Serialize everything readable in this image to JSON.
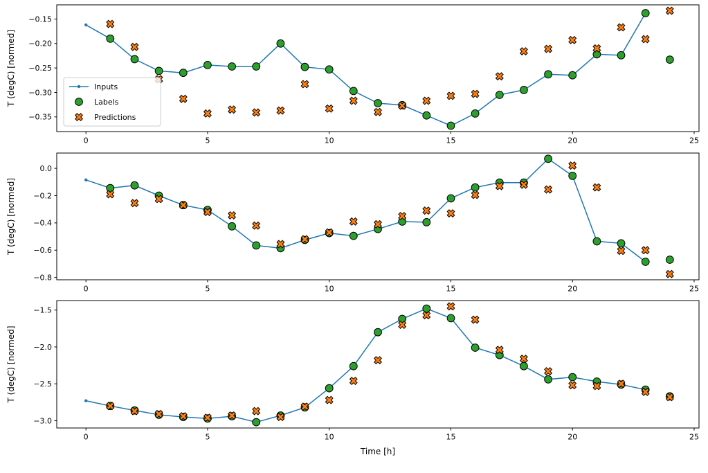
{
  "figure": {
    "xlabel": "Time [h]",
    "background": "#ffffff"
  },
  "legend": {
    "items": [
      "Inputs",
      "Labels",
      "Predictions"
    ],
    "position": "upper-left-of-first-subplot"
  },
  "colors": {
    "inputs": "#1f77b4",
    "labels": "#2ca02c",
    "predictions": "#ff7f0e",
    "marker_edge": "#000000",
    "legend_frame": "#cccccc"
  },
  "chart_data": [
    {
      "type": "line",
      "title": "",
      "ylabel": "T (degC) [normed]",
      "xlabel": "",
      "xlim": [
        -1.2,
        25.2
      ],
      "ylim": [
        -0.38,
        -0.121
      ],
      "xticks": [
        0,
        5,
        10,
        15,
        20,
        25
      ],
      "xtick_labels": [
        "0",
        "5",
        "10",
        "15",
        "20",
        "25"
      ],
      "yticks": [
        -0.15,
        -0.2,
        -0.25,
        -0.3,
        -0.35
      ],
      "ytick_labels": [
        "−0.15",
        "−0.20",
        "−0.25",
        "−0.30",
        "−0.35"
      ],
      "grid": false,
      "series": [
        {
          "name": "Inputs",
          "type": "line-dot",
          "color": "#1f77b4",
          "x": [
            0,
            1,
            2,
            3,
            4,
            5,
            6,
            7,
            8,
            9,
            10,
            11,
            12,
            13,
            14,
            15,
            16,
            17,
            18,
            19,
            20,
            21,
            22,
            23
          ],
          "y": [
            -0.162,
            -0.19,
            -0.232,
            -0.256,
            -0.26,
            -0.244,
            -0.247,
            -0.247,
            -0.2,
            -0.248,
            -0.253,
            -0.297,
            -0.322,
            -0.326,
            -0.347,
            -0.368,
            -0.343,
            -0.305,
            -0.295,
            -0.263,
            -0.265,
            -0.222,
            -0.224,
            -0.138
          ]
        },
        {
          "name": "Labels",
          "type": "circle",
          "color": "#2ca02c",
          "x": [
            1,
            2,
            3,
            4,
            5,
            6,
            7,
            8,
            9,
            10,
            11,
            12,
            13,
            14,
            15,
            16,
            17,
            18,
            19,
            20,
            21,
            22,
            23,
            24
          ],
          "y": [
            -0.19,
            -0.232,
            -0.256,
            -0.26,
            -0.244,
            -0.247,
            -0.247,
            -0.2,
            -0.248,
            -0.253,
            -0.297,
            -0.322,
            -0.326,
            -0.347,
            -0.368,
            -0.343,
            -0.305,
            -0.295,
            -0.263,
            -0.265,
            -0.222,
            -0.224,
            -0.138,
            -0.233
          ]
        },
        {
          "name": "Predictions",
          "type": "X",
          "color": "#ff7f0e",
          "x": [
            1,
            2,
            3,
            4,
            5,
            6,
            7,
            8,
            9,
            10,
            11,
            12,
            13,
            14,
            15,
            16,
            17,
            18,
            19,
            20,
            21,
            22,
            23,
            24
          ],
          "y": [
            -0.16,
            -0.207,
            -0.273,
            -0.313,
            -0.343,
            -0.335,
            -0.341,
            -0.337,
            -0.283,
            -0.333,
            -0.317,
            -0.34,
            -0.327,
            -0.317,
            -0.307,
            -0.303,
            -0.267,
            -0.216,
            -0.211,
            -0.193,
            -0.21,
            -0.167,
            -0.191,
            -0.133
          ]
        }
      ]
    },
    {
      "type": "line",
      "title": "",
      "ylabel": "T (degC) [normed]",
      "xlabel": "",
      "xlim": [
        -1.2,
        25.2
      ],
      "ylim": [
        -0.817,
        0.112
      ],
      "xticks": [
        0,
        5,
        10,
        15,
        20,
        25
      ],
      "xtick_labels": [
        "0",
        "5",
        "10",
        "15",
        "20",
        "25"
      ],
      "yticks": [
        0.0,
        -0.2,
        -0.4,
        -0.6,
        -0.8
      ],
      "ytick_labels": [
        "0.0",
        "−0.2",
        "−0.4",
        "−0.6",
        "−0.8"
      ],
      "grid": false,
      "series": [
        {
          "name": "Inputs",
          "type": "line-dot",
          "color": "#1f77b4",
          "x": [
            0,
            1,
            2,
            3,
            4,
            5,
            6,
            7,
            8,
            9,
            10,
            11,
            12,
            13,
            14,
            15,
            16,
            17,
            18,
            19,
            20,
            21,
            22,
            23
          ],
          "y": [
            -0.085,
            -0.145,
            -0.125,
            -0.2,
            -0.27,
            -0.305,
            -0.425,
            -0.565,
            -0.585,
            -0.525,
            -0.475,
            -0.495,
            -0.445,
            -0.39,
            -0.395,
            -0.22,
            -0.14,
            -0.105,
            -0.105,
            0.07,
            -0.055,
            -0.535,
            -0.55,
            -0.685
          ]
        },
        {
          "name": "Labels",
          "type": "circle",
          "color": "#2ca02c",
          "x": [
            1,
            2,
            3,
            4,
            5,
            6,
            7,
            8,
            9,
            10,
            11,
            12,
            13,
            14,
            15,
            16,
            17,
            18,
            19,
            20,
            21,
            22,
            23,
            24
          ],
          "y": [
            -0.145,
            -0.125,
            -0.2,
            -0.27,
            -0.305,
            -0.425,
            -0.565,
            -0.585,
            -0.525,
            -0.475,
            -0.495,
            -0.445,
            -0.39,
            -0.395,
            -0.22,
            -0.14,
            -0.105,
            -0.105,
            0.07,
            -0.055,
            -0.535,
            -0.55,
            -0.685,
            -0.67
          ]
        },
        {
          "name": "Predictions",
          "type": "X",
          "color": "#ff7f0e",
          "x": [
            1,
            2,
            3,
            4,
            5,
            6,
            7,
            8,
            9,
            10,
            11,
            12,
            13,
            14,
            15,
            16,
            17,
            18,
            19,
            20,
            21,
            22,
            23,
            24
          ],
          "y": [
            -0.19,
            -0.255,
            -0.225,
            -0.27,
            -0.32,
            -0.345,
            -0.42,
            -0.555,
            -0.52,
            -0.47,
            -0.39,
            -0.41,
            -0.35,
            -0.31,
            -0.33,
            -0.195,
            -0.13,
            -0.12,
            -0.155,
            0.02,
            -0.14,
            -0.605,
            -0.6,
            -0.775
          ]
        }
      ]
    },
    {
      "type": "line",
      "title": "",
      "ylabel": "T (degC) [normed]",
      "xlabel": "Time [h]",
      "xlim": [
        -1.2,
        25.2
      ],
      "ylim": [
        -3.099,
        -1.371
      ],
      "xticks": [
        0,
        5,
        10,
        15,
        20,
        25
      ],
      "xtick_labels": [
        "0",
        "5",
        "10",
        "15",
        "20",
        "25"
      ],
      "yticks": [
        -1.5,
        -2.0,
        -2.5,
        -3.0
      ],
      "ytick_labels": [
        "−1.5",
        "−2.0",
        "−2.5",
        "−3.0"
      ],
      "grid": false,
      "series": [
        {
          "name": "Inputs",
          "type": "line-dot",
          "color": "#1f77b4",
          "x": [
            0,
            1,
            2,
            3,
            4,
            5,
            6,
            7,
            8,
            9,
            10,
            11,
            12,
            13,
            14,
            15,
            16,
            17,
            18,
            19,
            20,
            21,
            22,
            23
          ],
          "y": [
            -2.73,
            -2.8,
            -2.86,
            -2.92,
            -2.95,
            -2.97,
            -2.94,
            -3.02,
            -2.93,
            -2.82,
            -2.56,
            -2.26,
            -1.8,
            -1.62,
            -1.48,
            -1.61,
            -2.01,
            -2.11,
            -2.26,
            -2.44,
            -2.41,
            -2.47,
            -2.51,
            -2.58
          ]
        },
        {
          "name": "Labels",
          "type": "circle",
          "color": "#2ca02c",
          "x": [
            1,
            2,
            3,
            4,
            5,
            6,
            7,
            8,
            9,
            10,
            11,
            12,
            13,
            14,
            15,
            16,
            17,
            18,
            19,
            20,
            21,
            22,
            23,
            24
          ],
          "y": [
            -2.8,
            -2.86,
            -2.92,
            -2.95,
            -2.97,
            -2.94,
            -3.02,
            -2.93,
            -2.82,
            -2.56,
            -2.26,
            -1.8,
            -1.62,
            -1.48,
            -1.61,
            -2.01,
            -2.11,
            -2.26,
            -2.44,
            -2.41,
            -2.47,
            -2.51,
            -2.58,
            -2.67
          ]
        },
        {
          "name": "Predictions",
          "type": "X",
          "color": "#ff7f0e",
          "x": [
            1,
            2,
            3,
            4,
            5,
            6,
            7,
            8,
            9,
            10,
            11,
            12,
            13,
            14,
            15,
            16,
            17,
            18,
            19,
            20,
            21,
            22,
            23,
            24
          ],
          "y": [
            -2.8,
            -2.87,
            -2.91,
            -2.94,
            -2.96,
            -2.93,
            -2.87,
            -2.95,
            -2.81,
            -2.72,
            -2.46,
            -2.18,
            -1.7,
            -1.57,
            -1.45,
            -1.63,
            -2.04,
            -2.16,
            -2.33,
            -2.52,
            -2.53,
            -2.5,
            -2.61,
            -2.68
          ]
        }
      ]
    }
  ]
}
